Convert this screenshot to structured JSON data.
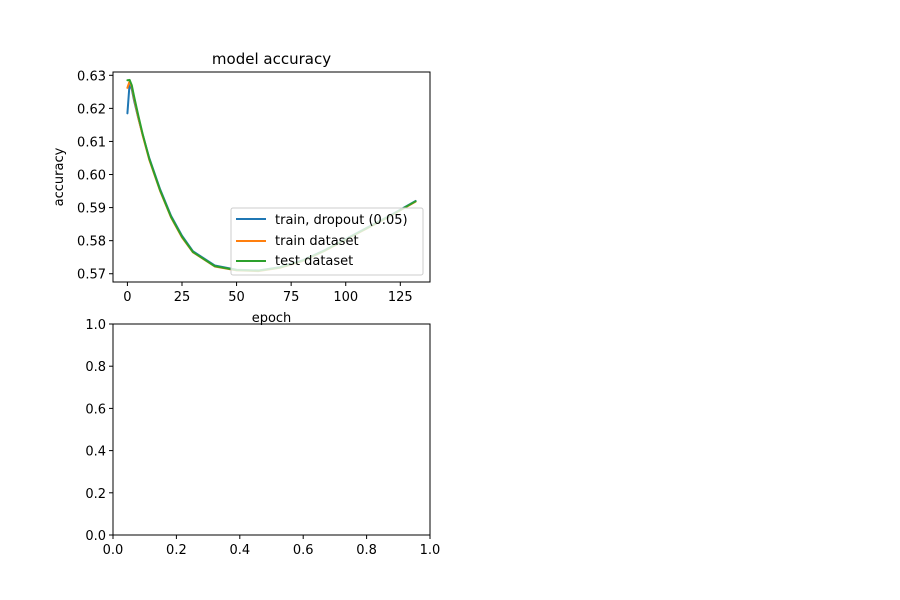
{
  "chart_data": [
    {
      "type": "line",
      "title": "model accuracy",
      "xlabel": "epoch",
      "ylabel": "accuracy",
      "xlim": [
        -6.6,
        138.6
      ],
      "ylim": [
        0.5675,
        0.631
      ],
      "xticks": [
        0,
        25,
        50,
        75,
        100,
        125
      ],
      "yticks": [
        0.57,
        0.58,
        0.59,
        0.6,
        0.61,
        0.62,
        0.63
      ],
      "ytick_labels": [
        "0.57",
        "0.58",
        "0.59",
        "0.60",
        "0.61",
        "0.62",
        "0.63"
      ],
      "legend_position": "lower-right",
      "grid": false,
      "series": [
        {
          "name": "train, dropout (0.05)",
          "color": "#1f77b4",
          "x": [
            0,
            1,
            2,
            3,
            5,
            7,
            10,
            15,
            20,
            25,
            30,
            40,
            50,
            60,
            70,
            80,
            90,
            100,
            110,
            120,
            132
          ],
          "y": [
            0.6185,
            0.6275,
            0.6258,
            0.6225,
            0.617,
            0.612,
            0.605,
            0.5955,
            0.5875,
            0.5815,
            0.5768,
            0.5725,
            0.5712,
            0.571,
            0.572,
            0.574,
            0.577,
            0.5805,
            0.584,
            0.5875,
            0.592
          ]
        },
        {
          "name": "train dataset",
          "color": "#ff7f0e",
          "x": [
            0,
            1,
            2,
            3,
            5,
            7,
            10,
            15,
            20,
            25,
            30,
            40,
            50,
            60,
            70,
            80,
            90,
            100,
            110,
            120,
            132
          ],
          "y": [
            0.6262,
            0.6282,
            0.6265,
            0.6232,
            0.6172,
            0.6118,
            0.6045,
            0.595,
            0.587,
            0.581,
            0.5765,
            0.5722,
            0.571,
            0.5708,
            0.5718,
            0.5738,
            0.5768,
            0.5803,
            0.5838,
            0.5873,
            0.5918
          ]
        },
        {
          "name": "test dataset",
          "color": "#2ca02c",
          "x": [
            0,
            1,
            2,
            3,
            5,
            7,
            10,
            15,
            20,
            25,
            30,
            40,
            50,
            60,
            70,
            80,
            90,
            100,
            110,
            120,
            132
          ],
          "y": [
            0.6285,
            0.6286,
            0.627,
            0.6238,
            0.6178,
            0.6122,
            0.6048,
            0.5952,
            0.5872,
            0.5812,
            0.5766,
            0.5723,
            0.5711,
            0.5709,
            0.5719,
            0.5739,
            0.5769,
            0.5804,
            0.5839,
            0.5874,
            0.5919
          ]
        }
      ]
    },
    {
      "type": "line",
      "title": "",
      "xlabel": "",
      "ylabel": "",
      "xlim": [
        0,
        1
      ],
      "ylim": [
        0,
        1
      ],
      "xticks": [
        0,
        0.2,
        0.4,
        0.6,
        0.8,
        1.0
      ],
      "xtick_labels": [
        "0.0",
        "0.2",
        "0.4",
        "0.6",
        "0.8",
        "1.0"
      ],
      "yticks": [
        0,
        0.2,
        0.4,
        0.6,
        0.8,
        1.0
      ],
      "ytick_labels": [
        "0.0",
        "0.2",
        "0.4",
        "0.6",
        "0.8",
        "1.0"
      ],
      "grid": false,
      "series": []
    }
  ]
}
